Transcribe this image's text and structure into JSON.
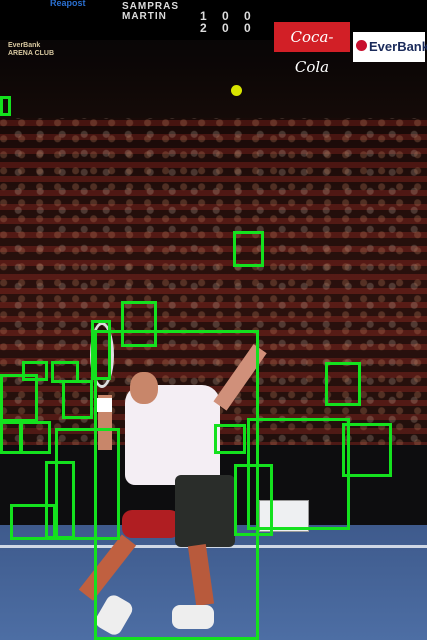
{
  "scoreboard": {
    "top_text": "Reapost",
    "player_names": [
      "SAMPRAS",
      "MARTIN"
    ],
    "scores": [
      "1 0 0",
      "2 0 0"
    ]
  },
  "sponsors": {
    "coca_cola": "Coca-Cola",
    "everbank": "EverBank",
    "everbank_small_line1": "EverBank",
    "everbank_small_line2": "ARENA CLUB"
  },
  "detections": {
    "label": "person",
    "color": "#14e11e",
    "count": 27
  }
}
